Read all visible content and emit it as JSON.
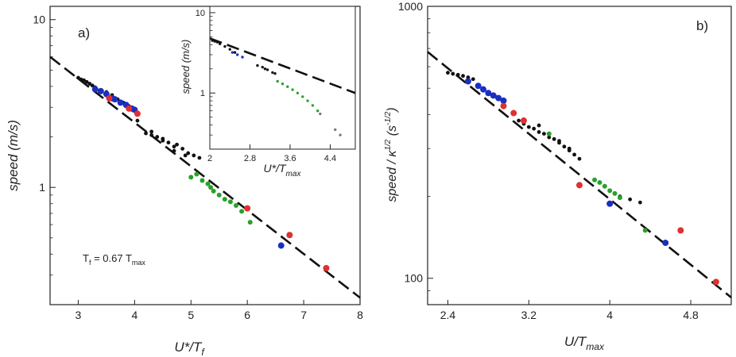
{
  "chart_data": [
    {
      "type": "scatter",
      "panel_label": "a)",
      "xlabel": "U*/T",
      "xlabel_sub": "f",
      "ylabel": "speed (m/s)",
      "yscale": "log",
      "xlim": [
        2.5,
        8
      ],
      "ylim": [
        0.2,
        12
      ],
      "xticks": [
        3,
        4,
        5,
        6,
        7,
        8
      ],
      "yticks": [
        1,
        10
      ],
      "annotation": {
        "text": "T",
        "sub1": "f",
        "middle": " = 0.67 T",
        "sub2": "max"
      },
      "fit_line": {
        "x": [
          2.5,
          8.0
        ],
        "y": [
          6.0,
          0.22
        ]
      },
      "series": [
        {
          "name": "black",
          "color": "#111111",
          "marker": "small",
          "x": [
            3.0,
            3.05,
            3.1,
            3.15,
            3.2,
            3.25,
            3.3,
            3.4,
            3.5,
            3.6,
            3.7,
            3.8,
            3.9,
            4.05,
            4.2,
            4.3,
            4.4,
            4.5,
            4.6,
            4.7,
            4.75,
            4.85,
            4.95,
            5.05,
            5.15,
            4.3,
            4.5,
            4.7,
            4.9
          ],
          "y": [
            4.5,
            4.4,
            4.35,
            4.25,
            4.15,
            4.05,
            3.95,
            3.8,
            3.7,
            3.55,
            3.35,
            3.2,
            3.05,
            2.5,
            2.1,
            2.05,
            2.0,
            1.95,
            1.85,
            1.75,
            1.8,
            1.7,
            1.6,
            1.55,
            1.5,
            2.15,
            1.9,
            1.65,
            1.55
          ]
        },
        {
          "name": "blue",
          "color": "#1a2fc0",
          "marker": "large",
          "x": [
            3.3,
            3.4,
            3.5,
            3.6,
            3.65,
            3.75,
            3.85,
            3.95,
            4.0,
            6.6
          ],
          "y": [
            3.85,
            3.75,
            3.6,
            3.4,
            3.35,
            3.2,
            3.1,
            2.95,
            2.9,
            0.45
          ]
        },
        {
          "name": "red",
          "color": "#e03030",
          "marker": "large",
          "x": [
            3.55,
            3.9,
            4.05,
            6.0,
            6.75,
            7.4
          ],
          "y": [
            3.4,
            2.95,
            2.75,
            0.75,
            0.52,
            0.33
          ]
        },
        {
          "name": "green",
          "color": "#2aa02a",
          "marker": "medium",
          "x": [
            5.0,
            5.1,
            5.2,
            5.3,
            5.35,
            5.4,
            5.5,
            5.6,
            5.7,
            5.8,
            5.9,
            6.05
          ],
          "y": [
            1.15,
            1.2,
            1.1,
            1.05,
            1.0,
            0.95,
            0.9,
            0.85,
            0.82,
            0.78,
            0.72,
            0.62
          ]
        }
      ],
      "inset": {
        "xlabel": "U*/T",
        "xlabel_sub": "max",
        "ylabel": "speed (m/s)",
        "yscale": "log",
        "xlim": [
          2,
          4.9
        ],
        "ylim": [
          0.2,
          12
        ],
        "xticks": [
          "2",
          "2.8",
          "3.6",
          "4.4"
        ],
        "xtick_values": [
          2,
          2.8,
          3.6,
          4.4
        ],
        "yticks": [
          "1",
          "10"
        ],
        "ytick_values": [
          1,
          10
        ],
        "fit_line": {
          "x": [
            2.0,
            4.9
          ],
          "y": [
            4.8,
            1.0
          ]
        },
        "series": [
          {
            "name": "black",
            "color": "#111111",
            "x": [
              2.05,
              2.1,
              2.15,
              2.2,
              2.3,
              2.4,
              2.5,
              2.95,
              3.05,
              3.1,
              3.15,
              3.25,
              3.3
            ],
            "y": [
              4.5,
              4.4,
              4.3,
              4.1,
              3.8,
              3.5,
              3.2,
              2.2,
              2.1,
              2.0,
              1.95,
              1.8,
              1.75
            ]
          },
          {
            "name": "blue",
            "color": "#1a2fc0",
            "x": [
              2.45,
              2.55,
              2.65
            ],
            "y": [
              3.2,
              3.0,
              2.8
            ]
          },
          {
            "name": "green",
            "color": "#2aa02a",
            "x": [
              3.35,
              3.45,
              3.55,
              3.65,
              3.75,
              3.85,
              3.95,
              4.05,
              4.15
            ],
            "y": [
              1.4,
              1.3,
              1.2,
              1.1,
              1.0,
              0.9,
              0.8,
              0.7,
              0.6
            ]
          },
          {
            "name": "gray",
            "color": "#777777",
            "x": [
              4.2,
              4.5,
              4.6
            ],
            "y": [
              0.55,
              0.35,
              0.3
            ]
          }
        ]
      }
    },
    {
      "type": "scatter",
      "panel_label": "b)",
      "xlabel": "U/T",
      "xlabel_sub": "max",
      "ylabel": "speed / κ",
      "ylabel_sup": "1/2",
      "ylabel_unit": " (s",
      "ylabel_unit_sup": "-1/2",
      "ylabel_close": ")",
      "yscale": "log",
      "xlim": [
        2.2,
        5.2
      ],
      "ylim": [
        80,
        1000
      ],
      "xticks": [
        "2.4",
        "3.2",
        "4",
        "4.8"
      ],
      "xtick_values": [
        2.4,
        3.2,
        4.0,
        4.8
      ],
      "yticks": [
        "100",
        "1000"
      ],
      "ytick_values": [
        100,
        1000
      ],
      "fit_line": {
        "x": [
          2.2,
          5.2
        ],
        "y": [
          680,
          85
        ]
      },
      "series": [
        {
          "name": "black",
          "color": "#111111",
          "marker": "small",
          "x": [
            2.4,
            2.45,
            2.5,
            2.55,
            2.6,
            2.65,
            3.1,
            3.15,
            3.2,
            3.25,
            3.3,
            3.35,
            3.4,
            3.45,
            3.5,
            3.55,
            3.6,
            3.65,
            3.7,
            4.0,
            4.05,
            4.1,
            4.2,
            4.3,
            3.3,
            3.4,
            3.5,
            3.6
          ],
          "y": [
            570,
            565,
            560,
            555,
            548,
            540,
            380,
            370,
            360,
            355,
            345,
            340,
            330,
            325,
            315,
            305,
            295,
            285,
            275,
            210,
            205,
            200,
            195,
            190,
            365,
            340,
            320,
            300
          ]
        },
        {
          "name": "blue",
          "color": "#1a2fc0",
          "marker": "large",
          "x": [
            2.6,
            2.7,
            2.75,
            2.8,
            2.85,
            2.9,
            2.95,
            4.0,
            4.55
          ],
          "y": [
            530,
            510,
            495,
            480,
            470,
            460,
            450,
            188,
            135
          ]
        },
        {
          "name": "red",
          "color": "#e03030",
          "marker": "large",
          "x": [
            2.95,
            3.05,
            3.15,
            3.7,
            4.7,
            5.05
          ],
          "y": [
            430,
            405,
            380,
            220,
            150,
            97
          ]
        },
        {
          "name": "green",
          "color": "#2aa02a",
          "marker": "medium",
          "x": [
            3.85,
            3.9,
            3.95,
            4.0,
            4.05,
            4.1,
            3.4,
            4.35
          ],
          "y": [
            230,
            225,
            218,
            210,
            205,
            198,
            340,
            150
          ]
        }
      ]
    }
  ]
}
